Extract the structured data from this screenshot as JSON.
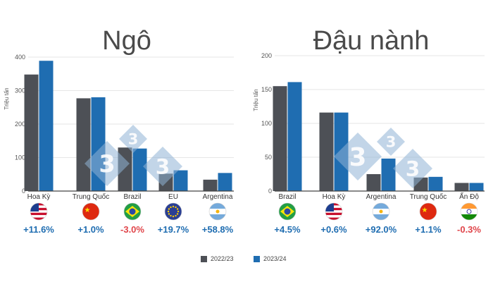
{
  "colors": {
    "series_2022": "#4d5056",
    "series_2023": "#1f6db1",
    "positive": "#1f6db1",
    "negative": "#e0454a",
    "watermark": "#8fb2d6"
  },
  "legend": {
    "items": [
      "2022/23",
      "2023/24"
    ]
  },
  "chart_data": [
    {
      "type": "bar",
      "title": "Ngô",
      "ylabel": "Triệu tấn",
      "xlabel": "",
      "ylim": [
        0,
        400
      ],
      "yticks": [
        0,
        100,
        200,
        300,
        400
      ],
      "grid": true,
      "categories": [
        "Hoa Kỳ",
        "Trung Quốc",
        "Brazil",
        "EU",
        "Argentina"
      ],
      "series": [
        {
          "name": "2022/23",
          "values": [
            348,
            277,
            130,
            52,
            34
          ]
        },
        {
          "name": "2023/24",
          "values": [
            389,
            280,
            127,
            62,
            54
          ]
        }
      ],
      "flags": [
        "us-flag-icon",
        "china-flag-icon",
        "brazil-flag-icon",
        "eu-flag-icon",
        "argentina-flag-icon"
      ],
      "changes": [
        "+11.6%",
        "+1.0%",
        "-3.0%",
        "+19.7%",
        "+58.8%"
      ]
    },
    {
      "type": "bar",
      "title": "Đậu nành",
      "ylabel": "Triệu tấn",
      "xlabel": "",
      "ylim": [
        0,
        200
      ],
      "yticks": [
        0,
        50,
        100,
        150,
        200
      ],
      "grid": true,
      "categories": [
        "Brazil",
        "Hoa Kỳ",
        "Argentina",
        "Trung Quốc",
        "Ấn Độ"
      ],
      "series": [
        {
          "name": "2022/23",
          "values": [
            155,
            116,
            25,
            20,
            12
          ]
        },
        {
          "name": "2023/24",
          "values": [
            161,
            116,
            48,
            21,
            12
          ]
        }
      ],
      "flags": [
        "brazil-flag-icon",
        "us-flag-icon",
        "argentina-flag-icon",
        "china-flag-icon",
        "india-flag-icon"
      ],
      "changes": [
        "+4.5%",
        "+0.6%",
        "+92.0%",
        "+1.1%",
        "-0.3%"
      ]
    }
  ]
}
